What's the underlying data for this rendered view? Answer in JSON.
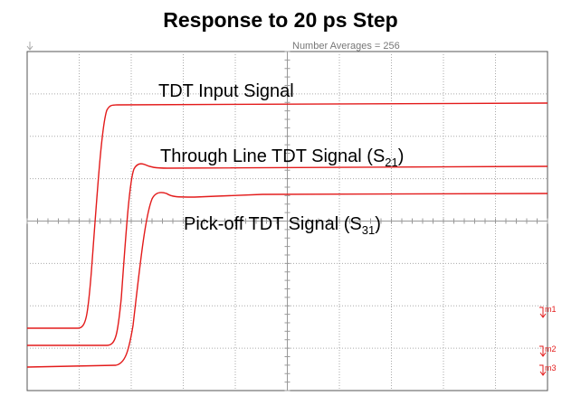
{
  "title": "Response to 20 ps Step",
  "status": "Number Averages = 256",
  "traces": [
    {
      "label": "TDT Input Signal"
    },
    {
      "label": "Through Line TDT Signal (S",
      "subscript": "21",
      "suffix": ")"
    },
    {
      "label": "Pick-off TDT Signal (S",
      "subscript": "31",
      "suffix": ")"
    }
  ],
  "markers": [
    "m1",
    "m2",
    "m3"
  ]
}
